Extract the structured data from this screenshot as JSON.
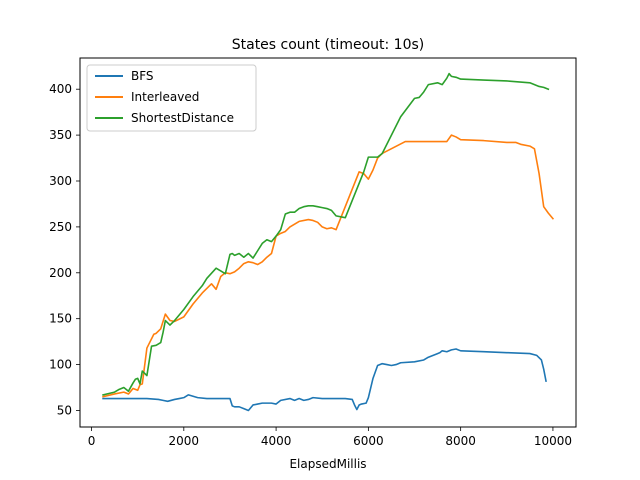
{
  "chart_data": {
    "type": "line",
    "title": "States count (timeout: 10s)",
    "xlabel": "ElapsedMillis",
    "ylabel": "",
    "xlim": [
      -250,
      10500
    ],
    "ylim": [
      32,
      434
    ],
    "xticks": [
      0,
      2000,
      4000,
      6000,
      8000,
      10000
    ],
    "yticks": [
      50,
      100,
      150,
      200,
      250,
      300,
      350,
      400
    ],
    "grid": false,
    "legend_position": "top-left",
    "series": [
      {
        "name": "BFS",
        "color": "#1f77b4",
        "x": [
          250,
          500,
          1000,
          1200,
          1450,
          1550,
          1650,
          1800,
          1900,
          2000,
          2100,
          2300,
          2500,
          2800,
          3000,
          3050,
          3100,
          3200,
          3300,
          3400,
          3500,
          3600,
          3700,
          3900,
          4000,
          4100,
          4300,
          4400,
          4500,
          4600,
          4700,
          4800,
          5000,
          5200,
          5500,
          5650,
          5700,
          5750,
          5800,
          5850,
          5950,
          6000,
          6100,
          6200,
          6300,
          6400,
          6500,
          6600,
          6700,
          7000,
          7200,
          7300,
          7500,
          7550,
          7600,
          7700,
          7800,
          7900,
          8000,
          8500,
          9000,
          9500,
          9650,
          9750,
          9800,
          9850
        ],
        "y": [
          63,
          63,
          63,
          63,
          62,
          61,
          60,
          62,
          63,
          64,
          67,
          64,
          63,
          63,
          63,
          55,
          54,
          54,
          52,
          50,
          56,
          57,
          58,
          58,
          57,
          61,
          63,
          61,
          63,
          61,
          62,
          64,
          63,
          63,
          63,
          62,
          56,
          51,
          56,
          57,
          58,
          64,
          85,
          99,
          101,
          100,
          99,
          100,
          102,
          103,
          105,
          108,
          112,
          113,
          115,
          114,
          116,
          117,
          115,
          114,
          113,
          112,
          110,
          105,
          95,
          82
        ]
      },
      {
        "name": "Interleaved",
        "color": "#ff7f0e",
        "x": [
          250,
          500,
          700,
          800,
          900,
          1000,
          1050,
          1100,
          1200,
          1350,
          1400,
          1500,
          1600,
          1700,
          1800,
          2000,
          2200,
          2400,
          2600,
          2700,
          2800,
          2900,
          3000,
          3100,
          3200,
          3300,
          3400,
          3500,
          3600,
          3700,
          3800,
          3900,
          4000,
          4100,
          4200,
          4300,
          4500,
          4700,
          4800,
          4900,
          5000,
          5100,
          5200,
          5300,
          5800,
          5900,
          6000,
          6100,
          6200,
          6300,
          6800,
          7000,
          7500,
          7700,
          7800,
          7900,
          8000,
          8500,
          9000,
          9200,
          9300,
          9500,
          9600,
          9700,
          9800,
          9900,
          10000
        ],
        "y": [
          65,
          68,
          70,
          68,
          74,
          72,
          78,
          79,
          118,
          133,
          134,
          139,
          155,
          148,
          147,
          152,
          166,
          178,
          188,
          182,
          196,
          200,
          199,
          201,
          205,
          210,
          212,
          211,
          209,
          212,
          217,
          221,
          240,
          243,
          245,
          250,
          256,
          258,
          257,
          255,
          250,
          248,
          249,
          247,
          310,
          308,
          302,
          312,
          325,
          330,
          343,
          343,
          343,
          343,
          350,
          348,
          345,
          344,
          342,
          342,
          340,
          338,
          335,
          308,
          272,
          265,
          259
        ]
      },
      {
        "name": "ShortestDistance",
        "color": "#2ca02c",
        "x": [
          250,
          500,
          600,
          700,
          800,
          900,
          950,
          1000,
          1050,
          1100,
          1200,
          1300,
          1400,
          1500,
          1550,
          1600,
          1700,
          1800,
          2000,
          2200,
          2400,
          2500,
          2700,
          2800,
          2900,
          3000,
          3050,
          3100,
          3200,
          3300,
          3400,
          3500,
          3600,
          3700,
          3800,
          3900,
          4000,
          4100,
          4200,
          4300,
          4400,
          4500,
          4600,
          4700,
          4800,
          4900,
          5000,
          5100,
          5200,
          5300,
          5500,
          5900,
          6000,
          6200,
          6300,
          6700,
          7000,
          7100,
          7200,
          7300,
          7500,
          7600,
          7700,
          7750,
          7800,
          7900,
          8000,
          8500,
          9000,
          9500,
          9700,
          9800,
          9900
        ],
        "y": [
          67,
          70,
          73,
          75,
          71,
          80,
          84,
          85,
          79,
          93,
          88,
          120,
          121,
          124,
          135,
          148,
          143,
          148,
          160,
          174,
          186,
          194,
          205,
          202,
          199,
          220,
          221,
          219,
          221,
          217,
          221,
          216,
          224,
          232,
          236,
          234,
          240,
          247,
          264,
          266,
          266,
          270,
          272,
          273,
          273,
          272,
          271,
          270,
          268,
          262,
          260,
          310,
          326,
          326,
          330,
          370,
          390,
          391,
          397,
          405,
          407,
          405,
          412,
          417,
          414,
          413,
          411,
          410,
          409,
          407,
          403,
          402,
          400
        ]
      }
    ]
  }
}
